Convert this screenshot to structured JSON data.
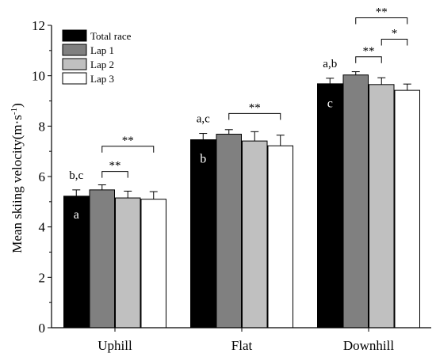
{
  "chart_data": {
    "type": "bar",
    "categories": [
      "Uphill",
      "Flat",
      "Downhill"
    ],
    "series": [
      {
        "name": "Total race",
        "color": "#000000",
        "values": [
          5.22,
          7.46,
          9.68
        ],
        "errors": [
          0.25,
          0.25,
          0.22
        ]
      },
      {
        "name": "Lap 1",
        "color": "#808080",
        "values": [
          5.47,
          7.68,
          10.03
        ],
        "errors": [
          0.2,
          0.18,
          0.13
        ]
      },
      {
        "name": "Lap 2",
        "color": "#c0c0c0",
        "values": [
          5.15,
          7.41,
          9.65
        ],
        "errors": [
          0.27,
          0.37,
          0.27
        ]
      },
      {
        "name": "Lap 3",
        "color": "#ffffff",
        "values": [
          5.1,
          7.22,
          9.42
        ],
        "errors": [
          0.3,
          0.42,
          0.25
        ]
      }
    ],
    "ylabel_main": "Mean skiing velocity(m·s",
    "ylabel_sup": "-1",
    "ylabel_tail": ")",
    "ylim": [
      0,
      12
    ],
    "yticks": [
      "0",
      "2",
      "4",
      "6",
      "8",
      "10",
      "12"
    ],
    "legend_position": "top-left",
    "group_letters": [
      {
        "category": 0,
        "series": 0,
        "text": "b,c"
      },
      {
        "category": 1,
        "series": 0,
        "text": "a,c"
      },
      {
        "category": 2,
        "series": 0,
        "text": "a,b"
      }
    ],
    "bar_letters": [
      {
        "category": 0,
        "series": 0,
        "text": "a",
        "value": 4.5
      },
      {
        "category": 1,
        "series": 0,
        "text": "b",
        "value": 6.7
      },
      {
        "category": 2,
        "series": 0,
        "text": "c",
        "value": 8.9
      }
    ],
    "significance": [
      {
        "category": 0,
        "from": 1,
        "to": 2,
        "text": "**",
        "value": 6.2
      },
      {
        "category": 0,
        "from": 1,
        "to": 3,
        "text": "**",
        "value": 7.2
      },
      {
        "category": 1,
        "from": 1,
        "to": 3,
        "text": "**",
        "value": 8.5
      },
      {
        "category": 2,
        "from": 1,
        "to": 2,
        "text": "**",
        "value": 10.75
      },
      {
        "category": 2,
        "from": 2,
        "to": 3,
        "text": "*",
        "value": 11.45
      },
      {
        "category": 2,
        "from": 1,
        "to": 3,
        "text": "**",
        "value": 12.3
      }
    ]
  }
}
